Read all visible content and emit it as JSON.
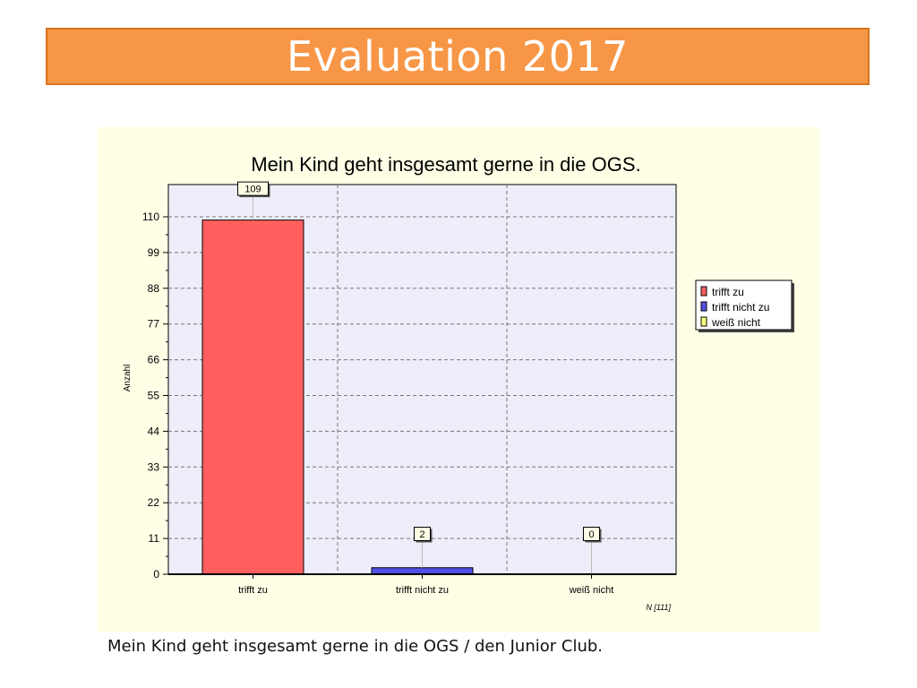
{
  "slide": {
    "title": "Evaluation 2017",
    "caption": "Mein Kind geht insgesamt gerne in die OGS / den Junior Club."
  },
  "colors": {
    "banner": "#f79646",
    "panel": "#ffffe6",
    "plot": "#eeeefa",
    "bar_trifft_zu": "#ff5f5f",
    "bar_trifft_nicht_zu": "#5050e6",
    "bar_weiss_nicht": "#ffff80"
  },
  "chart_data": {
    "type": "bar",
    "title": "Mein Kind geht insgesamt gerne in die OGS.",
    "xlabel": "",
    "ylabel": "Anzahl",
    "ylim": [
      0,
      110
    ],
    "yticks": [
      0,
      11,
      22,
      33,
      44,
      55,
      66,
      77,
      88,
      99,
      110
    ],
    "categories": [
      "trifft zu",
      "trifft nicht zu",
      "weiß nicht"
    ],
    "values": [
      109,
      2,
      0
    ],
    "data_labels": [
      "109",
      "2",
      "0"
    ],
    "legend": [
      "trifft zu",
      "trifft nicht zu",
      "weiß nicht"
    ],
    "legend_position": "right",
    "grid": true,
    "footnote": "N [111]"
  }
}
